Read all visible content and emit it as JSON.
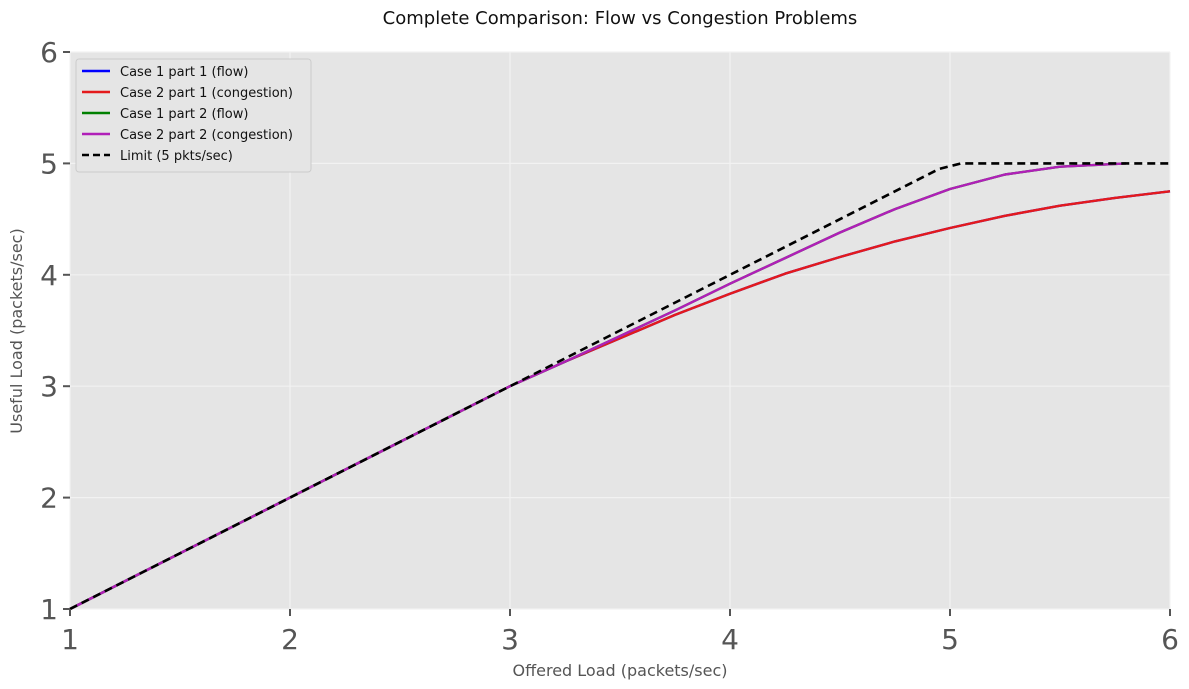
{
  "chart_data": {
    "type": "line",
    "title": "Complete Comparison: Flow vs Congestion Problems",
    "xlabel": "Offered Load (packets/sec)",
    "ylabel": "Useful Load (packets/sec)",
    "xlim": [
      1,
      6
    ],
    "ylim": [
      1,
      6
    ],
    "xticks": [
      1,
      2,
      3,
      4,
      5,
      6
    ],
    "yticks": [
      1,
      2,
      3,
      4,
      5,
      6
    ],
    "xtick_labels": [
      "1",
      "2",
      "3",
      "4",
      "5",
      "6"
    ],
    "ytick_labels": [
      "1",
      "2",
      "3",
      "4",
      "5",
      "6"
    ],
    "grid": true,
    "background": "#e5e5e5",
    "legend_position": "top-left",
    "series": [
      {
        "name": "Case 1 part 1 (flow)",
        "color": "#0000ff",
        "style": "solid",
        "x": [
          1.0,
          2.0,
          3.0,
          3.25,
          3.5,
          3.75,
          4.0,
          4.25,
          4.5,
          4.75,
          5.0,
          5.25,
          5.5,
          5.75,
          6.0
        ],
        "y": [
          1.0,
          2.0,
          3.0,
          3.22,
          3.43,
          3.64,
          3.83,
          4.01,
          4.16,
          4.3,
          4.42,
          4.53,
          4.62,
          4.69,
          4.75
        ]
      },
      {
        "name": "Case 2 part 1 (congestion)",
        "color": "#e41a1c",
        "style": "solid",
        "x": [
          1.0,
          2.0,
          3.0,
          3.25,
          3.5,
          3.75,
          4.0,
          4.25,
          4.5,
          4.75,
          5.0,
          5.25,
          5.5,
          5.75,
          6.0
        ],
        "y": [
          1.0,
          2.0,
          3.0,
          3.22,
          3.43,
          3.64,
          3.83,
          4.01,
          4.16,
          4.3,
          4.42,
          4.53,
          4.62,
          4.69,
          4.75
        ]
      },
      {
        "name": "Case 1 part 2 (flow)",
        "color": "#008000",
        "style": "solid",
        "x": [
          1.0,
          2.0,
          3.0,
          3.25,
          3.5,
          3.75,
          4.0,
          4.25,
          4.5,
          4.75,
          5.0,
          5.25,
          5.5,
          5.8
        ],
        "y": [
          1.0,
          2.0,
          3.0,
          3.22,
          3.45,
          3.68,
          3.92,
          4.15,
          4.38,
          4.59,
          4.77,
          4.9,
          4.97,
          5.0
        ]
      },
      {
        "name": "Case 2 part 2 (congestion)",
        "color": "#b01fb8",
        "style": "solid",
        "x": [
          1.0,
          2.0,
          3.0,
          3.25,
          3.5,
          3.75,
          4.0,
          4.25,
          4.5,
          4.75,
          5.0,
          5.25,
          5.5,
          5.8
        ],
        "y": [
          1.0,
          2.0,
          3.0,
          3.22,
          3.45,
          3.68,
          3.92,
          4.15,
          4.38,
          4.59,
          4.77,
          4.9,
          4.97,
          5.0
        ]
      },
      {
        "name": "Limit (5 pkts/sec)",
        "color": "#000000",
        "style": "dashed",
        "x": [
          1.0,
          4.95,
          5.05,
          6.0
        ],
        "y": [
          1.0,
          4.95,
          5.0,
          5.0
        ]
      }
    ]
  }
}
